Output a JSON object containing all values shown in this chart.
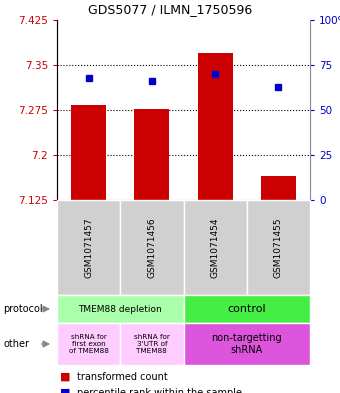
{
  "title": "GDS5077 / ILMN_1750596",
  "samples": [
    "GSM1071457",
    "GSM1071456",
    "GSM1071454",
    "GSM1071455"
  ],
  "red_values": [
    7.284,
    7.277,
    7.37,
    7.165
  ],
  "blue_values": [
    68,
    66,
    70,
    63
  ],
  "ymin": 7.125,
  "ymax": 7.425,
  "yticks": [
    7.125,
    7.2,
    7.275,
    7.35,
    7.425
  ],
  "ytick_labels": [
    "7.125",
    "7.2",
    "7.275",
    "7.35",
    "7.425"
  ],
  "right_yticks": [
    0,
    25,
    50,
    75,
    100
  ],
  "right_ytick_labels": [
    "0",
    "25",
    "50",
    "75",
    "100%"
  ],
  "grid_values": [
    7.2,
    7.275,
    7.35
  ],
  "bar_color": "#cc0000",
  "dot_color": "#0000cc",
  "bar_bottom": 7.125,
  "protocol_color_left": "#aaffaa",
  "protocol_color_right": "#44ee44",
  "other_color_left": "#ffccff",
  "other_color_right": "#dd55dd",
  "gray_box": "#d0d0d0"
}
